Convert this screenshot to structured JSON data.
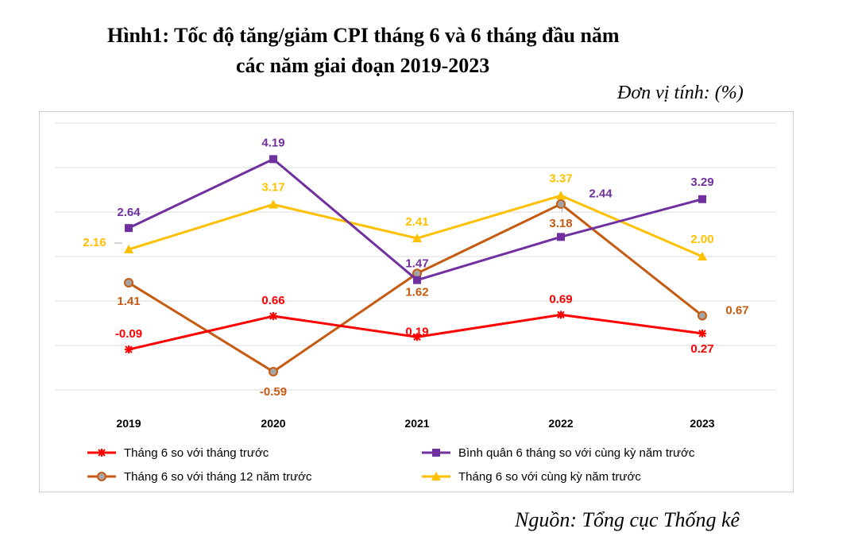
{
  "title": {
    "line1": "Hình1: Tốc độ tăng/giảm CPI tháng 6 và 6 tháng đầu năm",
    "line2": "các năm giai đoạn 2019-2023"
  },
  "unit": "Đơn vị tính: (%)",
  "source": "Nguồn: Tổng cục Thống kê",
  "chart_data": {
    "type": "line",
    "title": "Hình1: Tốc độ tăng/giảm CPI tháng 6 và 6 tháng đầu năm các năm giai đoạn 2019-2023",
    "xlabel": "",
    "ylabel": "",
    "ylim": [
      -1,
      4.5
    ],
    "grid": true,
    "categories": [
      "2019",
      "2020",
      "2021",
      "2022",
      "2023"
    ],
    "legend_position": "bottom",
    "series": [
      {
        "name": "Tháng 6 so với tháng trước",
        "values": [
          -0.09,
          0.66,
          0.19,
          0.69,
          0.27
        ],
        "labels": [
          "-0.09",
          "0.66",
          "0.19",
          "0.69",
          "0.27"
        ],
        "color": "#ff0000",
        "marker": "star"
      },
      {
        "name": "Bình quân 6 tháng so với cùng kỳ năm trước",
        "values": [
          2.64,
          4.19,
          1.47,
          2.44,
          3.29
        ],
        "labels": [
          "2.64",
          "4.19",
          "1.47",
          "2.44",
          "3.29"
        ],
        "color": "#7030a0",
        "marker": "square"
      },
      {
        "name": "Tháng 6 so với tháng 12 năm trước",
        "values": [
          1.41,
          -0.59,
          1.62,
          3.18,
          0.67
        ],
        "labels": [
          "1.41",
          "-0.59",
          "1.62",
          "3.18",
          "0.67"
        ],
        "color": "#c55a11",
        "marker": "circle"
      },
      {
        "name": "Tháng 6 so với cùng kỳ năm trước",
        "values": [
          2.16,
          3.17,
          2.41,
          3.37,
          2.0
        ],
        "labels": [
          "2.16",
          "3.17",
          "2.41",
          "3.37",
          "2.00"
        ],
        "color": "#ffc000",
        "marker": "triangle"
      }
    ]
  }
}
